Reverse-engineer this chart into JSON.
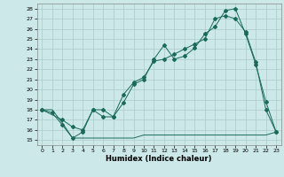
{
  "xlabel": "Humidex (Indice chaleur)",
  "xlim": [
    -0.5,
    23.5
  ],
  "ylim": [
    14.5,
    28.5
  ],
  "yticks": [
    15,
    16,
    17,
    18,
    19,
    20,
    21,
    22,
    23,
    24,
    25,
    26,
    27,
    28
  ],
  "xticks": [
    0,
    1,
    2,
    3,
    4,
    5,
    6,
    7,
    8,
    9,
    10,
    11,
    12,
    13,
    14,
    15,
    16,
    17,
    18,
    19,
    20,
    21,
    22,
    23
  ],
  "background": "#cce8e8",
  "grid_color": "#aacccc",
  "line_color": "#1a6a5a",
  "line1_x": [
    0,
    1,
    2,
    3,
    4,
    5,
    6,
    7,
    8,
    9,
    10,
    11,
    12,
    13,
    14,
    15,
    16,
    17,
    18,
    19,
    20,
    21,
    22,
    23
  ],
  "line1_y": [
    18.0,
    17.7,
    16.5,
    15.2,
    15.8,
    18.0,
    18.0,
    17.3,
    18.7,
    20.5,
    21.0,
    23.0,
    24.4,
    23.0,
    23.3,
    24.1,
    25.5,
    26.2,
    27.8,
    28.0,
    25.5,
    22.5,
    18.8,
    15.8
  ],
  "line2_x": [
    0,
    2,
    3,
    4,
    5,
    6,
    7,
    8,
    9,
    10,
    11,
    12,
    13,
    14,
    15,
    16,
    17,
    18,
    19,
    20,
    21,
    22,
    23
  ],
  "line2_y": [
    18.0,
    17.0,
    16.3,
    16.0,
    18.0,
    17.3,
    17.3,
    19.5,
    20.7,
    21.2,
    22.8,
    23.0,
    23.5,
    24.0,
    24.5,
    25.0,
    27.0,
    27.3,
    27.0,
    25.7,
    22.7,
    18.0,
    15.8
  ],
  "line3_x": [
    0,
    1,
    2,
    3,
    4,
    5,
    6,
    7,
    8,
    9,
    10,
    11,
    12,
    13,
    14,
    15,
    16,
    17,
    18,
    19,
    20,
    21,
    22,
    23
  ],
  "line3_y": [
    18.0,
    18.0,
    16.7,
    15.2,
    15.2,
    15.2,
    15.2,
    15.2,
    15.2,
    15.2,
    15.5,
    15.5,
    15.5,
    15.5,
    15.5,
    15.5,
    15.5,
    15.5,
    15.5,
    15.5,
    15.5,
    15.5,
    15.5,
    15.8
  ]
}
